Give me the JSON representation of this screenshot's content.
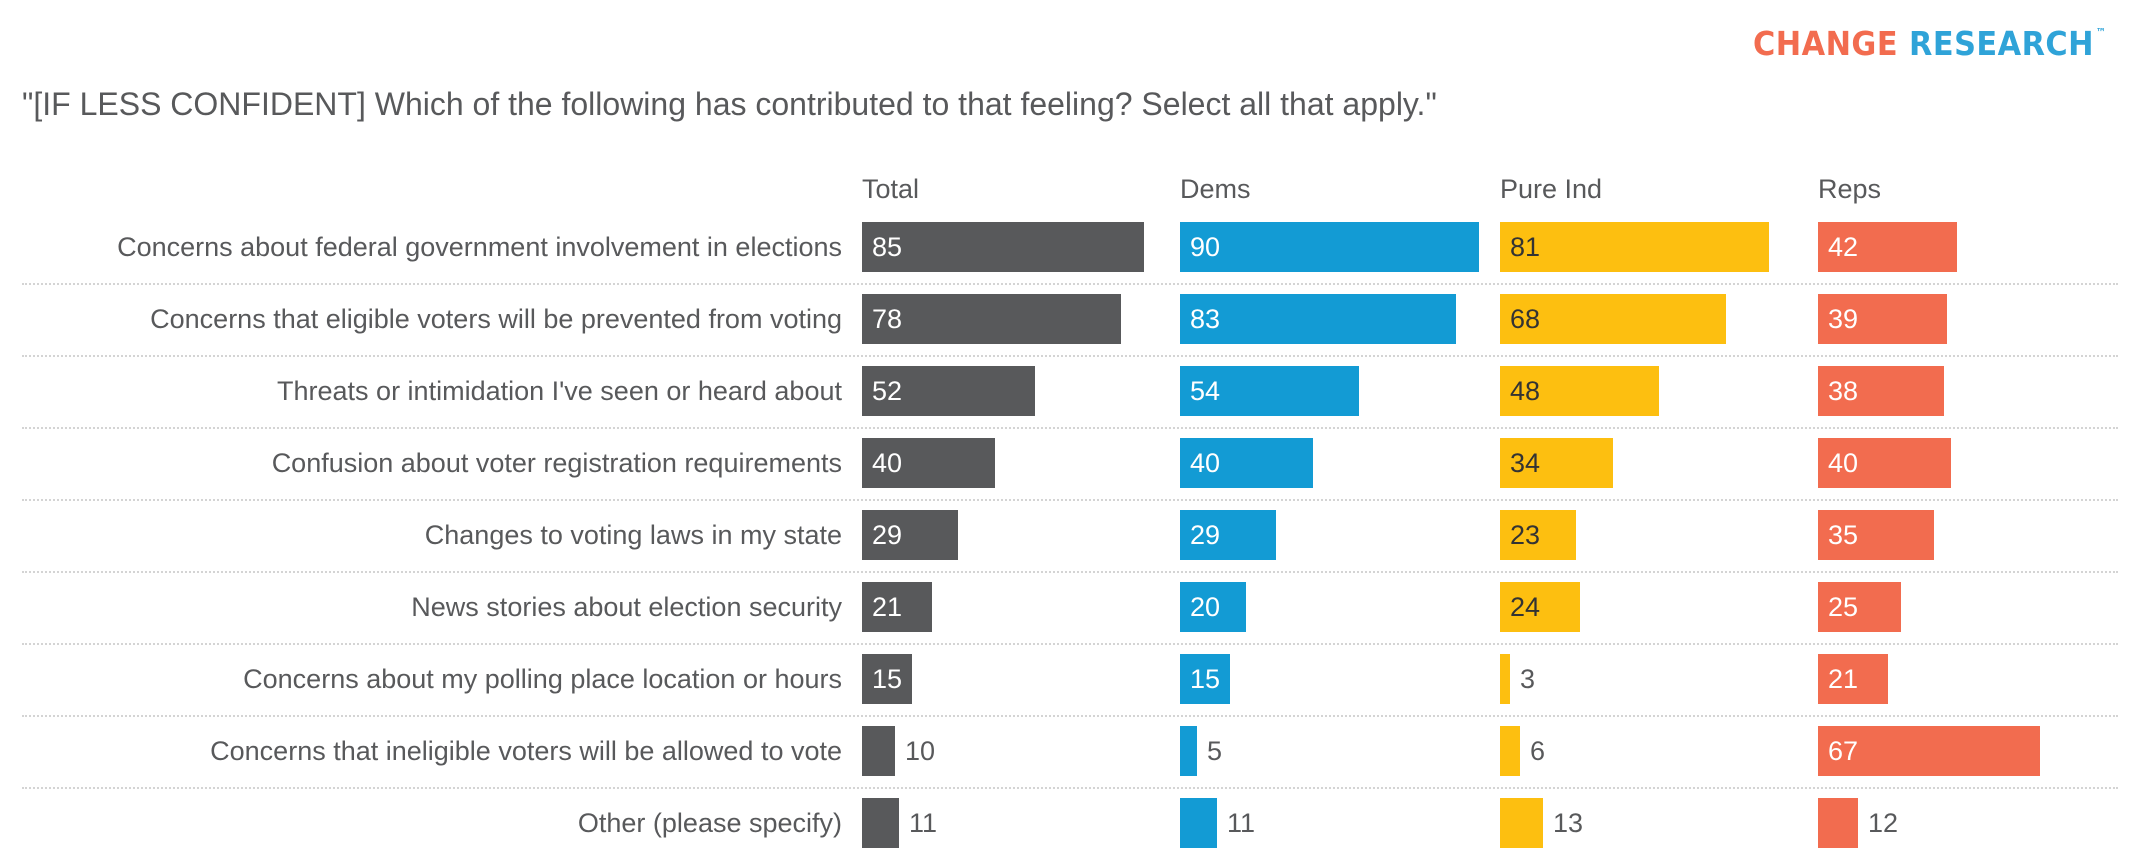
{
  "brand": {
    "logo_word1": "CHANGE",
    "logo_word2": "RESEARCH",
    "logo_tm": "™",
    "colors": {
      "word1": "#f26c4f",
      "word2": "#2fa3d8"
    }
  },
  "chart_data": {
    "type": "bar",
    "orientation": "horizontal",
    "title": "\"[IF LESS CONFIDENT] Which of the following has contributed to that feeling? Select all that apply.\"",
    "xlabel": "",
    "ylabel": "",
    "xlim": [
      0,
      100
    ],
    "grid": false,
    "legend": "none",
    "categories": [
      "Concerns about federal government involvement in elections",
      "Concerns that eligible voters will be prevented from voting",
      "Threats or intimidation I've seen or heard about",
      "Confusion about voter registration requirements",
      "Changes to voting laws in my state",
      "News stories about election security",
      "Concerns about my polling place location or hours",
      "Concerns that ineligible voters will be allowed to vote",
      "Other (please specify)"
    ],
    "series": [
      {
        "name": "Total",
        "color": "#58595b",
        "label_color": "#ffffff",
        "values": [
          85,
          78,
          52,
          40,
          29,
          21,
          15,
          10,
          11
        ]
      },
      {
        "name": "Dems",
        "color": "#139bd4",
        "label_color": "#ffffff",
        "values": [
          90,
          83,
          54,
          40,
          29,
          20,
          15,
          5,
          11
        ]
      },
      {
        "name": "Pure Ind",
        "color": "#fdbf10",
        "label_color": "#333333",
        "values": [
          81,
          68,
          48,
          34,
          23,
          24,
          3,
          6,
          13
        ]
      },
      {
        "name": "Reps",
        "color": "#f26c4f",
        "label_color": "#ffffff",
        "values": [
          42,
          39,
          38,
          40,
          35,
          25,
          21,
          67,
          12
        ]
      }
    ],
    "outside_label_color": "#58595b"
  }
}
